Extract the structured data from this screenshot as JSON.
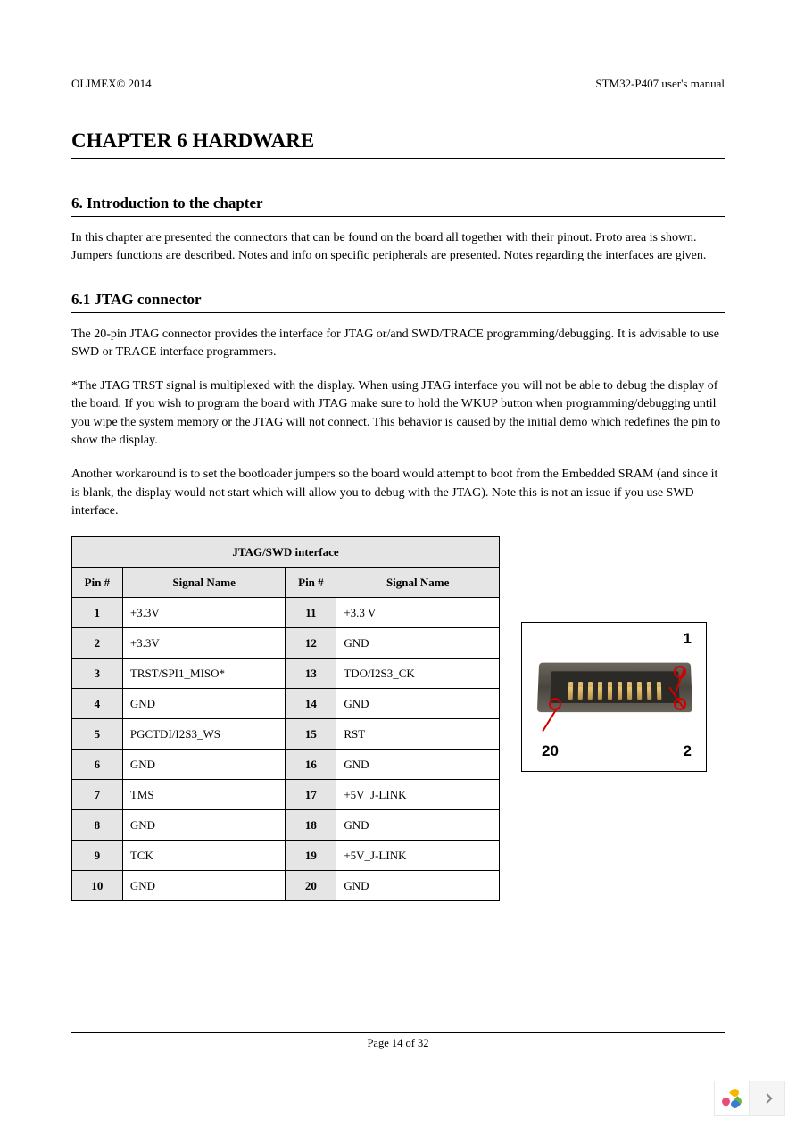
{
  "header": {
    "left": "OLIMEX© 2014",
    "right": "STM32-P407 user's manual"
  },
  "chapter_title": "CHAPTER 6 HARDWARE",
  "section_intro": {
    "title": "6. Introduction to the chapter",
    "text": "In this chapter are presented the connectors that can be found on the board all together with their pinout. Proto area is shown. Jumpers functions are described. Notes and info on specific peripherals are presented. Notes regarding the interfaces are given."
  },
  "section_61": {
    "title": "6.1 JTAG connector",
    "p1": "The 20-pin JTAG connector provides the interface for JTAG or/and SWD/TRACE programming/debugging. It is advisable to use SWD or TRACE interface programmers.",
    "p2": "*The JTAG TRST signal is multiplexed with the display. When using JTAG interface you will not be able to debug the display of the board. If you wish to program the board with JTAG make sure to hold the WKUP button when programming/debugging until you wipe the system memory or the JTAG will not connect. This behavior is caused by the initial demo which redefines the pin to show the display.",
    "p3": "Another workaround is to set the bootloader jumpers so the board would attempt to boot from the Embedded SRAM (and since it is blank, the display would not start which will allow you to debug with the JTAG). Note this is not an issue if you use SWD interface."
  },
  "table": {
    "title": "JTAG/SWD interface",
    "col_headers": [
      "Pin #",
      "Signal Name",
      "Pin #",
      "Signal Name"
    ],
    "rows": [
      [
        "1",
        "+3.3V",
        "11",
        "+3.3 V"
      ],
      [
        "2",
        "+3.3V",
        "12",
        "GND"
      ],
      [
        "3",
        "TRST/SPI1_MISO*",
        "13",
        "TDO/I2S3_CK"
      ],
      [
        "4",
        "GND",
        "14",
        "GND"
      ],
      [
        "5",
        "PGCTDI/I2S3_WS",
        "15",
        "RST"
      ],
      [
        "6",
        "GND",
        "16",
        "GND"
      ],
      [
        "7",
        "TMS",
        "17",
        "+5V_J-LINK"
      ],
      [
        "8",
        "GND",
        "18",
        "GND"
      ],
      [
        "9",
        "TCK",
        "19",
        "+5V_J-LINK"
      ],
      [
        "10",
        "GND",
        "20",
        "GND"
      ]
    ]
  },
  "connector": {
    "labels": {
      "tl": "1",
      "bl": "20",
      "br": "2"
    },
    "mark_color": "#d00000",
    "body_color": "#5a554d",
    "pin_color": "#d4af5c"
  },
  "footer": "Page 14 of 32",
  "nav": {
    "petal_colors": [
      "#f7b500",
      "#6eb53f",
      "#3a7bd5",
      "#e94b7c"
    ]
  }
}
